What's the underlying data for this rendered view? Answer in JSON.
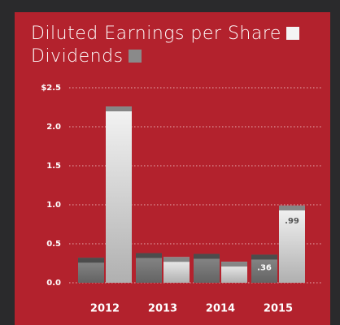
{
  "chart_data": {
    "type": "bar",
    "categories": [
      "2012",
      "2013",
      "2014",
      "2015"
    ],
    "series": [
      {
        "name": "Dividends",
        "color": "#8a8a8a",
        "values": [
          0.32,
          0.38,
          0.37,
          0.36
        ],
        "value_labels": [
          null,
          null,
          null,
          ".36"
        ]
      },
      {
        "name": "Diluted Earnings per Share",
        "color": "#f4f4f4",
        "values": [
          2.26,
          0.33,
          0.27,
          0.99
        ],
        "value_labels": [
          null,
          null,
          null,
          ".99"
        ]
      }
    ],
    "ylim": [
      0,
      2.5
    ],
    "yticks": [
      {
        "value": 0,
        "label": "0.0"
      },
      0.5,
      {
        "value": 1,
        "label": "1.0"
      },
      1.5,
      {
        "value": 2,
        "label": "2.0"
      },
      {
        "value": 2.5,
        "label": "$2.5"
      }
    ],
    "grid": true
  }
}
